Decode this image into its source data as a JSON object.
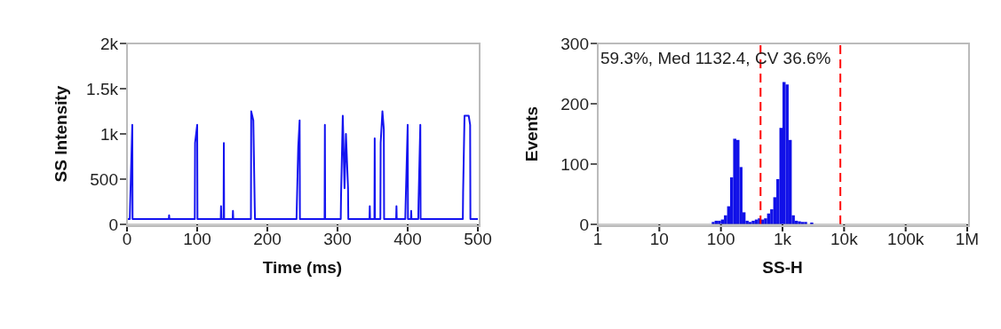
{
  "chart_data": [
    {
      "type": "line",
      "xlabel": "Time (ms)",
      "ylabel": "SS Intensity",
      "marker": "none",
      "xlim": [
        0,
        500
      ],
      "xticks": [
        0,
        100,
        200,
        300,
        400,
        500
      ],
      "ylim": [
        0,
        2000
      ],
      "yticks": [
        0,
        500,
        {
          "value": 1000,
          "label": "1k"
        },
        {
          "value": 1500,
          "label": "1.5k"
        },
        {
          "value": 2000,
          "label": "2k"
        }
      ],
      "series": [
        {
          "color": "#1414f0",
          "x": [
            0,
            4.0,
            4.4,
            7.5,
            7.9,
            59.6,
            60,
            60.4,
            96.6,
            97,
            100,
            100.4,
            133.6,
            134,
            134.4,
            137.6,
            138,
            138.4,
            150.6,
            151,
            151.4,
            176.6,
            177,
            180,
            182,
            182.4,
            241.6,
            242,
            244,
            246,
            246.4,
            281.6,
            282,
            282.4,
            304.6,
            305,
            307.5,
            310,
            312,
            315,
            315.4,
            345.6,
            346,
            346.4,
            352.6,
            353,
            353.4,
            361.1,
            361.5,
            364,
            366,
            366.4,
            383.6,
            384,
            384.4,
            396.6,
            397,
            400,
            400.4,
            404.6,
            405,
            405.4,
            415.1,
            415.5,
            418,
            418.4,
            478.6,
            479,
            481,
            487,
            489,
            489.4,
            500
          ],
          "values": [
            60,
            60,
            200,
            1100,
            60,
            60,
            100,
            60,
            60,
            900,
            1100,
            60,
            60,
            200,
            60,
            60,
            900,
            60,
            60,
            150,
            60,
            60,
            1250,
            1150,
            200,
            60,
            60,
            200,
            850,
            1150,
            60,
            60,
            1100,
            60,
            60,
            300,
            1200,
            400,
            1000,
            400,
            60,
            60,
            200,
            60,
            60,
            950,
            60,
            60,
            900,
            1250,
            1050,
            60,
            60,
            200,
            60,
            60,
            200,
            1100,
            60,
            60,
            150,
            60,
            60,
            250,
            1100,
            60,
            60,
            350,
            1200,
            1200,
            1100,
            60,
            60
          ]
        }
      ]
    },
    {
      "type": "histogram",
      "xlabel": "SS-H",
      "ylabel": "Events",
      "log": "x",
      "color": "#1010e8",
      "xlim": [
        1,
        1000000
      ],
      "xticks": [
        1,
        10,
        100,
        {
          "value": 1000,
          "label": "1k"
        },
        {
          "value": 10000,
          "label": "10k"
        },
        {
          "value": 100000,
          "label": "100k"
        },
        {
          "value": 1000000,
          "label": "1M"
        }
      ],
      "ylim": [
        0,
        300
      ],
      "yticks": [
        0,
        100,
        200,
        300
      ],
      "bins": [
        71,
        79,
        89,
        100,
        112,
        126,
        141,
        158,
        178,
        200,
        224,
        251,
        282,
        316,
        355,
        398,
        447,
        501,
        562,
        631,
        708,
        794,
        891,
        1000,
        1122,
        1259,
        1413,
        1585,
        1778,
        1995,
        2239,
        2512,
        2818,
        3162
      ],
      "values": [
        4,
        6,
        6,
        8,
        15,
        30,
        78,
        142,
        140,
        95,
        20,
        6,
        4,
        6,
        8,
        10,
        8,
        10,
        18,
        25,
        45,
        75,
        160,
        236,
        232,
        140,
        15,
        6,
        5,
        4,
        4,
        null,
        3
      ],
      "ref_lines": [
        {
          "axis": "x",
          "value": 440,
          "color": "#ff0000",
          "line_style": "dashed"
        },
        {
          "axis": "x",
          "value": 8700,
          "color": "#ff0000",
          "line_style": "dashed"
        }
      ],
      "annotations": [
        "59.3%, Med 1132.4, CV 36.6%"
      ]
    }
  ]
}
